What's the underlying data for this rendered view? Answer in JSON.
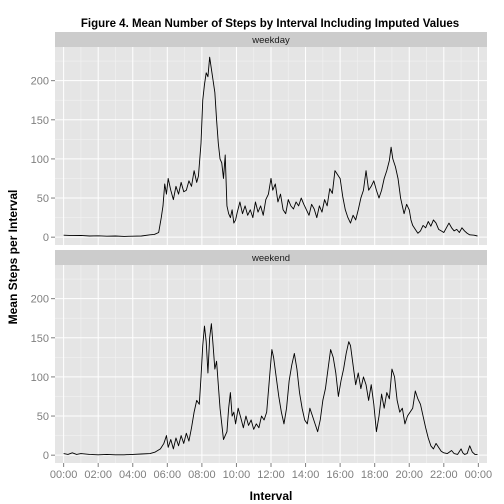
{
  "chart_data": {
    "type": "line",
    "title": "Figure 4. Mean Number of Steps by Interval Including Imputed Values",
    "xlabel": "Interval",
    "ylabel": "Mean Steps per Interval",
    "x_ticks": [
      "00:00",
      "02:00",
      "04:00",
      "06:00",
      "08:00",
      "10:00",
      "12:00",
      "14:00",
      "16:00",
      "18:00",
      "20:00",
      "22:00",
      "00:00"
    ],
    "y_ticks": [
      0,
      50,
      100,
      150,
      200
    ],
    "xlim_hours": [
      -0.5,
      24.5
    ],
    "ylim": [
      -10,
      243
    ],
    "grid": true,
    "panels": [
      {
        "name": "weekday",
        "points": [
          [
            0,
            2.5
          ],
          [
            0.5,
            2
          ],
          [
            1,
            2.2
          ],
          [
            1.5,
            1.5
          ],
          [
            2,
            1.8
          ],
          [
            2.5,
            1.2
          ],
          [
            3,
            1.5
          ],
          [
            3.5,
            1
          ],
          [
            4,
            1.2
          ],
          [
            4.5,
            1.5
          ],
          [
            5,
            3
          ],
          [
            5.25,
            3.5
          ],
          [
            5.5,
            6
          ],
          [
            5.65,
            25
          ],
          [
            5.75,
            40
          ],
          [
            5.85,
            68
          ],
          [
            5.95,
            55
          ],
          [
            6.05,
            75
          ],
          [
            6.2,
            60
          ],
          [
            6.35,
            48
          ],
          [
            6.5,
            65
          ],
          [
            6.65,
            55
          ],
          [
            6.8,
            70
          ],
          [
            6.95,
            58
          ],
          [
            7.1,
            60
          ],
          [
            7.25,
            72
          ],
          [
            7.4,
            65
          ],
          [
            7.55,
            85
          ],
          [
            7.7,
            70
          ],
          [
            7.8,
            78
          ],
          [
            7.95,
            120
          ],
          [
            8.05,
            175
          ],
          [
            8.15,
            195
          ],
          [
            8.25,
            210
          ],
          [
            8.35,
            205
          ],
          [
            8.45,
            230
          ],
          [
            8.55,
            215
          ],
          [
            8.65,
            200
          ],
          [
            8.75,
            185
          ],
          [
            8.85,
            150
          ],
          [
            8.95,
            120
          ],
          [
            9.05,
            100
          ],
          [
            9.15,
            95
          ],
          [
            9.25,
            75
          ],
          [
            9.35,
            105
          ],
          [
            9.45,
            40
          ],
          [
            9.55,
            30
          ],
          [
            9.65,
            25
          ],
          [
            9.75,
            35
          ],
          [
            9.85,
            18
          ],
          [
            9.95,
            22
          ],
          [
            10.05,
            32
          ],
          [
            10.2,
            45
          ],
          [
            10.35,
            30
          ],
          [
            10.5,
            40
          ],
          [
            10.65,
            28
          ],
          [
            10.8,
            35
          ],
          [
            10.95,
            25
          ],
          [
            11.1,
            45
          ],
          [
            11.25,
            32
          ],
          [
            11.4,
            40
          ],
          [
            11.55,
            28
          ],
          [
            11.7,
            48
          ],
          [
            11.85,
            55
          ],
          [
            12,
            75
          ],
          [
            12.1,
            60
          ],
          [
            12.25,
            68
          ],
          [
            12.4,
            45
          ],
          [
            12.55,
            55
          ],
          [
            12.7,
            35
          ],
          [
            12.85,
            30
          ],
          [
            13,
            48
          ],
          [
            13.15,
            40
          ],
          [
            13.3,
            36
          ],
          [
            13.45,
            45
          ],
          [
            13.6,
            40
          ],
          [
            13.75,
            50
          ],
          [
            13.9,
            42
          ],
          [
            14.05,
            35
          ],
          [
            14.2,
            28
          ],
          [
            14.35,
            42
          ],
          [
            14.5,
            36
          ],
          [
            14.65,
            25
          ],
          [
            14.8,
            40
          ],
          [
            14.95,
            32
          ],
          [
            15.1,
            48
          ],
          [
            15.25,
            40
          ],
          [
            15.4,
            62
          ],
          [
            15.55,
            56
          ],
          [
            15.7,
            85
          ],
          [
            15.85,
            80
          ],
          [
            16,
            75
          ],
          [
            16.15,
            52
          ],
          [
            16.3,
            35
          ],
          [
            16.45,
            25
          ],
          [
            16.6,
            18
          ],
          [
            16.75,
            28
          ],
          [
            16.9,
            22
          ],
          [
            17.05,
            35
          ],
          [
            17.2,
            50
          ],
          [
            17.35,
            60
          ],
          [
            17.5,
            85
          ],
          [
            17.65,
            60
          ],
          [
            17.8,
            65
          ],
          [
            17.95,
            72
          ],
          [
            18.1,
            60
          ],
          [
            18.25,
            50
          ],
          [
            18.4,
            60
          ],
          [
            18.55,
            75
          ],
          [
            18.7,
            85
          ],
          [
            18.85,
            98
          ],
          [
            18.95,
            115
          ],
          [
            19.05,
            100
          ],
          [
            19.2,
            90
          ],
          [
            19.35,
            75
          ],
          [
            19.5,
            50
          ],
          [
            19.6,
            40
          ],
          [
            19.7,
            30
          ],
          [
            19.85,
            42
          ],
          [
            20,
            35
          ],
          [
            20.1,
            22
          ],
          [
            20.2,
            15
          ],
          [
            20.35,
            10
          ],
          [
            20.5,
            5
          ],
          [
            20.65,
            8
          ],
          [
            20.8,
            15
          ],
          [
            20.95,
            12
          ],
          [
            21.1,
            20
          ],
          [
            21.25,
            14
          ],
          [
            21.4,
            22
          ],
          [
            21.55,
            18
          ],
          [
            21.7,
            10
          ],
          [
            21.85,
            8
          ],
          [
            22,
            6
          ],
          [
            22.15,
            12
          ],
          [
            22.3,
            18
          ],
          [
            22.45,
            12
          ],
          [
            22.6,
            8
          ],
          [
            22.75,
            10
          ],
          [
            22.9,
            6
          ],
          [
            23.05,
            12
          ],
          [
            23.2,
            8
          ],
          [
            23.35,
            5
          ],
          [
            23.5,
            3
          ],
          [
            23.75,
            2.5
          ],
          [
            23.95,
            1.5
          ]
        ]
      },
      {
        "name": "weekend",
        "points": [
          [
            0,
            2
          ],
          [
            0.25,
            1
          ],
          [
            0.5,
            3
          ],
          [
            0.75,
            1
          ],
          [
            1,
            2
          ],
          [
            1.5,
            1
          ],
          [
            2,
            0.5
          ],
          [
            2.5,
            1
          ],
          [
            3,
            0.5
          ],
          [
            3.5,
            0.5
          ],
          [
            4,
            1
          ],
          [
            4.5,
            1.5
          ],
          [
            5,
            2
          ],
          [
            5.3,
            4
          ],
          [
            5.6,
            8
          ],
          [
            5.8,
            15
          ],
          [
            5.95,
            25
          ],
          [
            6.05,
            10
          ],
          [
            6.2,
            20
          ],
          [
            6.35,
            8
          ],
          [
            6.5,
            22
          ],
          [
            6.65,
            12
          ],
          [
            6.8,
            25
          ],
          [
            6.95,
            15
          ],
          [
            7.1,
            28
          ],
          [
            7.25,
            18
          ],
          [
            7.4,
            35
          ],
          [
            7.55,
            55
          ],
          [
            7.7,
            70
          ],
          [
            7.85,
            65
          ],
          [
            7.95,
            100
          ],
          [
            8.05,
            140
          ],
          [
            8.15,
            165
          ],
          [
            8.25,
            145
          ],
          [
            8.35,
            105
          ],
          [
            8.45,
            150
          ],
          [
            8.55,
            168
          ],
          [
            8.65,
            140
          ],
          [
            8.75,
            110
          ],
          [
            8.85,
            120
          ],
          [
            8.95,
            90
          ],
          [
            9.05,
            60
          ],
          [
            9.15,
            40
          ],
          [
            9.25,
            20
          ],
          [
            9.35,
            25
          ],
          [
            9.45,
            30
          ],
          [
            9.55,
            60
          ],
          [
            9.65,
            80
          ],
          [
            9.75,
            50
          ],
          [
            9.85,
            55
          ],
          [
            9.95,
            40
          ],
          [
            10.1,
            60
          ],
          [
            10.25,
            48
          ],
          [
            10.4,
            35
          ],
          [
            10.55,
            50
          ],
          [
            10.7,
            38
          ],
          [
            10.85,
            45
          ],
          [
            11,
            33
          ],
          [
            11.15,
            40
          ],
          [
            11.3,
            35
          ],
          [
            11.45,
            50
          ],
          [
            11.6,
            45
          ],
          [
            11.75,
            55
          ],
          [
            11.9,
            95
          ],
          [
            12.05,
            135
          ],
          [
            12.15,
            125
          ],
          [
            12.3,
            100
          ],
          [
            12.45,
            75
          ],
          [
            12.6,
            55
          ],
          [
            12.75,
            40
          ],
          [
            12.9,
            60
          ],
          [
            13.05,
            95
          ],
          [
            13.2,
            115
          ],
          [
            13.35,
            130
          ],
          [
            13.5,
            110
          ],
          [
            13.65,
            80
          ],
          [
            13.8,
            60
          ],
          [
            13.95,
            45
          ],
          [
            14.1,
            40
          ],
          [
            14.25,
            60
          ],
          [
            14.4,
            50
          ],
          [
            14.55,
            40
          ],
          [
            14.7,
            30
          ],
          [
            14.85,
            45
          ],
          [
            15,
            70
          ],
          [
            15.15,
            85
          ],
          [
            15.3,
            110
          ],
          [
            15.45,
            135
          ],
          [
            15.6,
            125
          ],
          [
            15.75,
            105
          ],
          [
            15.9,
            75
          ],
          [
            16.05,
            95
          ],
          [
            16.2,
            110
          ],
          [
            16.35,
            130
          ],
          [
            16.5,
            145
          ],
          [
            16.6,
            140
          ],
          [
            16.75,
            115
          ],
          [
            16.9,
            90
          ],
          [
            17.05,
            105
          ],
          [
            17.2,
            85
          ],
          [
            17.35,
            100
          ],
          [
            17.5,
            90
          ],
          [
            17.65,
            70
          ],
          [
            17.8,
            90
          ],
          [
            17.95,
            65
          ],
          [
            18.1,
            30
          ],
          [
            18.25,
            50
          ],
          [
            18.4,
            78
          ],
          [
            18.55,
            60
          ],
          [
            18.7,
            80
          ],
          [
            18.85,
            72
          ],
          [
            19,
            110
          ],
          [
            19.15,
            100
          ],
          [
            19.3,
            70
          ],
          [
            19.45,
            55
          ],
          [
            19.6,
            60
          ],
          [
            19.75,
            40
          ],
          [
            19.9,
            50
          ],
          [
            20.05,
            55
          ],
          [
            20.2,
            60
          ],
          [
            20.35,
            82
          ],
          [
            20.5,
            72
          ],
          [
            20.65,
            65
          ],
          [
            20.8,
            50
          ],
          [
            20.95,
            35
          ],
          [
            21.1,
            22
          ],
          [
            21.25,
            12
          ],
          [
            21.4,
            8
          ],
          [
            21.55,
            15
          ],
          [
            21.7,
            10
          ],
          [
            21.85,
            5
          ],
          [
            22,
            3
          ],
          [
            22.2,
            2
          ],
          [
            22.45,
            6
          ],
          [
            22.6,
            2
          ],
          [
            22.8,
            1
          ],
          [
            23,
            8
          ],
          [
            23.1,
            3
          ],
          [
            23.2,
            1
          ],
          [
            23.35,
            2
          ],
          [
            23.5,
            12
          ],
          [
            23.65,
            4
          ],
          [
            23.8,
            1
          ],
          [
            23.95,
            1
          ]
        ]
      }
    ]
  }
}
